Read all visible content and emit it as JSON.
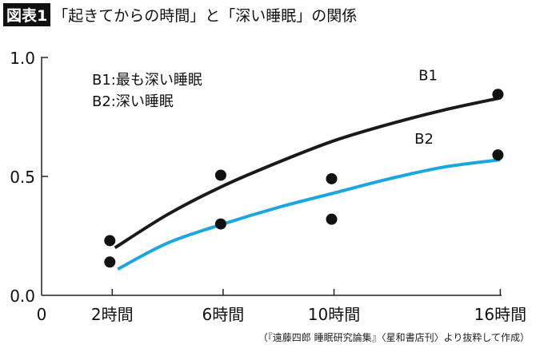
{
  "title": {
    "badge": "図表1",
    "text": "「起きてからの時間」と「深い睡眠」の関係"
  },
  "source": "（『遠藤四郎 睡眠研究論集』〈星和書店刊〉より抜粋して作成）",
  "chart_data": {
    "type": "line",
    "title": "「起きてからの時間」と「深い睡眠」の関係",
    "xlabel": "",
    "ylabel": "",
    "x_origin_label": "0",
    "x_ticks": [
      {
        "value": 2,
        "label": "2時間"
      },
      {
        "value": 6,
        "label": "6時間"
      },
      {
        "value": 10,
        "label": "10時間"
      },
      {
        "value": 16,
        "label": "16時間"
      }
    ],
    "y_ticks": [
      {
        "value": 0,
        "label": "0.0"
      },
      {
        "value": 0.5,
        "label": "0.5"
      },
      {
        "value": 1,
        "label": "1.0"
      }
    ],
    "ylim": [
      0,
      1
    ],
    "grid": false,
    "legend_text": [
      "B1:最も深い睡眠",
      "B2:深い睡眠"
    ],
    "legend_placement": "top-left",
    "series": [
      {
        "name": "B1",
        "color": "#1a1a1a",
        "curve": [
          [
            2.1,
            0.2
          ],
          [
            4,
            0.34
          ],
          [
            6,
            0.46
          ],
          [
            8,
            0.56
          ],
          [
            10,
            0.65
          ],
          [
            12,
            0.72
          ],
          [
            14,
            0.78
          ],
          [
            16,
            0.83
          ]
        ],
        "points": [
          [
            2,
            0.23
          ],
          [
            6,
            0.505
          ],
          [
            10,
            0.49
          ],
          [
            16,
            0.845
          ]
        ]
      },
      {
        "name": "B2",
        "color": "#1aa6e0",
        "curve": [
          [
            2.2,
            0.11
          ],
          [
            4,
            0.22
          ],
          [
            6,
            0.3
          ],
          [
            8,
            0.37
          ],
          [
            10,
            0.43
          ],
          [
            12,
            0.49
          ],
          [
            14,
            0.54
          ],
          [
            16,
            0.57
          ]
        ],
        "points": [
          [
            2,
            0.14
          ],
          [
            6,
            0.3
          ],
          [
            10,
            0.32
          ],
          [
            16,
            0.59
          ]
        ]
      }
    ],
    "point_color": "#111111"
  }
}
